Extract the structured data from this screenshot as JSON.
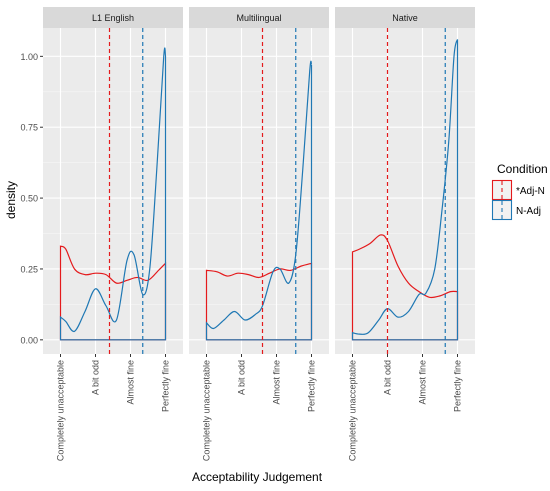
{
  "chart_data": {
    "type": "line",
    "xlabel": "Acceptability Judgement",
    "ylabel": "density",
    "x_ticks": [
      "Completely unacceptable",
      "A bit odd",
      "Almost fine",
      "Perfectly fine"
    ],
    "y_ticks": [
      "0.00",
      "0.25",
      "0.50",
      "0.75",
      "1.00"
    ],
    "ylim": [
      -0.05,
      1.1
    ],
    "xlim": [
      0.5,
      4.5
    ],
    "grid": true,
    "legend": {
      "title": "Condition",
      "position": "right",
      "entries": [
        {
          "name": "*Adj-N",
          "color": "#E41A1C"
        },
        {
          "name": "N-Adj",
          "color": "#1F78B4"
        }
      ]
    },
    "panels": [
      {
        "title": "L1 English",
        "series": [
          {
            "name": "*Adj-N",
            "color": "#E41A1C",
            "mean": 2.4,
            "x": [
              1.0,
              1.15,
              1.4,
              1.7,
              2.0,
              2.3,
              2.6,
              2.9,
              3.2,
              3.5,
              3.8,
              4.0
            ],
            "y": [
              0.33,
              0.32,
              0.25,
              0.23,
              0.235,
              0.23,
              0.2,
              0.21,
              0.22,
              0.21,
              0.245,
              0.27
            ]
          },
          {
            "name": "N-Adj",
            "color": "#1F78B4",
            "mean": 3.35,
            "x": [
              1.0,
              1.15,
              1.4,
              1.7,
              2.0,
              2.3,
              2.6,
              2.9,
              3.1,
              3.35,
              3.55,
              3.75,
              3.95,
              4.0
            ],
            "y": [
              0.08,
              0.065,
              0.03,
              0.1,
              0.18,
              0.12,
              0.07,
              0.28,
              0.3,
              0.16,
              0.25,
              0.6,
              1.0,
              1.0
            ]
          }
        ]
      },
      {
        "title": "Multilingual",
        "series": [
          {
            "name": "*Adj-N",
            "color": "#E41A1C",
            "mean": 2.6,
            "x": [
              1.0,
              1.3,
              1.6,
              1.9,
              2.2,
              2.5,
              2.8,
              3.1,
              3.4,
              3.7,
              4.0
            ],
            "y": [
              0.245,
              0.24,
              0.225,
              0.235,
              0.23,
              0.22,
              0.235,
              0.25,
              0.245,
              0.26,
              0.27
            ]
          },
          {
            "name": "N-Adj",
            "color": "#1F78B4",
            "mean": 3.55,
            "x": [
              1.0,
              1.2,
              1.5,
              1.8,
              2.1,
              2.4,
              2.6,
              2.9,
              3.1,
              3.35,
              3.55,
              3.75,
              3.95,
              4.0
            ],
            "y": [
              0.06,
              0.04,
              0.07,
              0.1,
              0.07,
              0.09,
              0.12,
              0.24,
              0.25,
              0.2,
              0.3,
              0.6,
              0.95,
              0.97
            ]
          }
        ]
      },
      {
        "title": "Native",
        "series": [
          {
            "name": "*Adj-N",
            "color": "#E41A1C",
            "mean": 2.0,
            "x": [
              1.0,
              1.2,
              1.5,
              1.8,
              2.0,
              2.3,
              2.6,
              2.9,
              3.2,
              3.5,
              3.8,
              4.0
            ],
            "y": [
              0.31,
              0.32,
              0.34,
              0.37,
              0.35,
              0.26,
              0.2,
              0.17,
              0.15,
              0.155,
              0.17,
              0.17
            ]
          },
          {
            "name": "N-Adj",
            "color": "#1F78B4",
            "mean": 3.65,
            "x": [
              1.0,
              1.2,
              1.45,
              1.75,
              2.0,
              2.3,
              2.6,
              2.9,
              3.1,
              3.35,
              3.55,
              3.75,
              3.9,
              4.0
            ],
            "y": [
              0.025,
              0.02,
              0.025,
              0.07,
              0.11,
              0.08,
              0.1,
              0.16,
              0.165,
              0.25,
              0.45,
              0.7,
              1.0,
              1.06
            ]
          }
        ]
      }
    ]
  }
}
